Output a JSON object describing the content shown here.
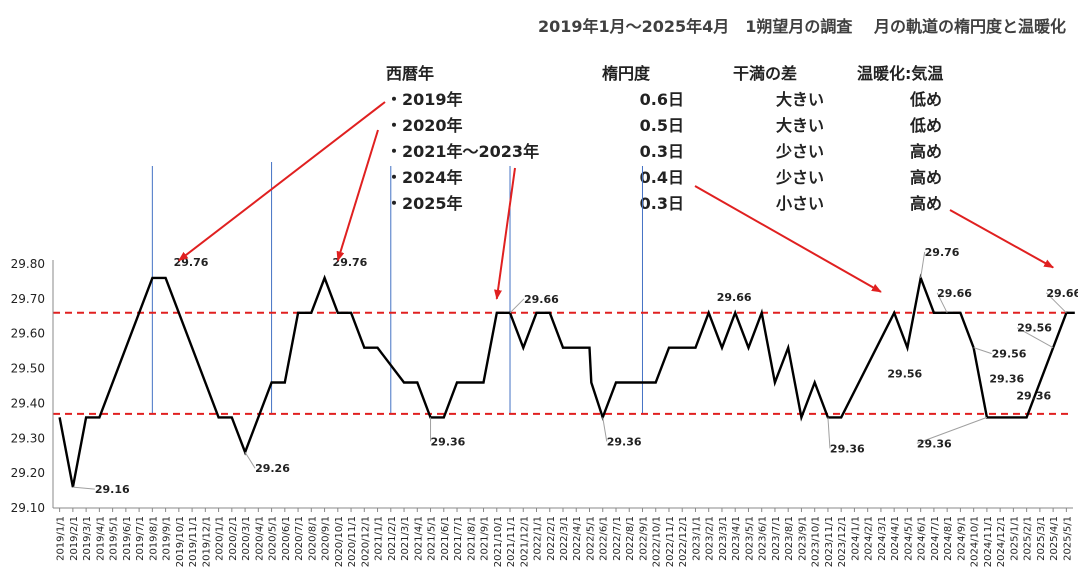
{
  "chart_data": {
    "type": "line",
    "title": "2019年1月～2025年4月　1朔望月の調査　 月の軌道の楕円度と温暖化",
    "xlabel": "",
    "ylabel": "",
    "ylim": [
      29.1,
      29.8
    ],
    "yticks": [
      29.1,
      29.2,
      29.3,
      29.4,
      29.5,
      29.6,
      29.7,
      29.8
    ],
    "grid": false,
    "legend": "none",
    "line_color": "#000000",
    "reference_lines": [
      {
        "value": 29.66,
        "style": "dashed",
        "color": "#e02020"
      },
      {
        "value": 29.37,
        "style": "dashed",
        "color": "#e02020"
      }
    ],
    "year_markers": [
      "2019/8/1",
      "2020/5/1",
      "2021/2/1",
      "2021/11/1",
      "2022/9/1"
    ],
    "marker_color": "#4472c4",
    "x": [
      "2019/1/1",
      "2019/2/1",
      "2019/3/1",
      "2019/4/1",
      "2019/5/1",
      "2019/6/1",
      "2019/7/1",
      "2019/8/1",
      "2019/9/1",
      "2019/10/1",
      "2019/11/1",
      "2019/12/1",
      "2020/1/1",
      "2020/2/1",
      "2020/3/1",
      "2020/4/1",
      "2020/5/1",
      "2020/6/1",
      "2020/7/1",
      "2020/8/1",
      "2020/9/1",
      "2020/10/1",
      "2020/11/1",
      "2020/12/1",
      "2021/1/1",
      "2021/2/1",
      "2021/3/1",
      "2021/4/1",
      "2021/5/1",
      "2021/6/1",
      "2021/7/1",
      "2021/8/1",
      "2021/9/1",
      "2021/10/1",
      "2021/11/1",
      "2021/12/1",
      "2022/1/1",
      "2022/2/1",
      "2022/3/1",
      "2022/4/1",
      "2022/5/1",
      "2022/6/1",
      "2022/7/1",
      "2022/8/1",
      "2022/9/1",
      "2022/10/1",
      "2022/11/1",
      "2022/12/1",
      "2023/1/1",
      "2023/2/1",
      "2023/3/1",
      "2023/4/1",
      "2023/5/1",
      "2023/6/1",
      "2023/7/1",
      "2023/8/1",
      "2023/9/1",
      "2023/10/1",
      "2023/11/1",
      "2023/12/1",
      "2024/1/1",
      "2024/2/1",
      "2024/3/1",
      "2024/4/1",
      "2024/5/1",
      "2024/6/1",
      "2024/7/1",
      "2024/8/1",
      "2024/9/1",
      "2024/10/1",
      "2024/11/1",
      "2024/12/1",
      "2025/1/1",
      "2025/2/1",
      "2025/3/1",
      "2025/4/1",
      "2025/5/1"
    ],
    "series": [
      {
        "points": [
          [
            "2019/1/1",
            29.36
          ],
          [
            "2019/2/1",
            29.16
          ],
          [
            "2019/3/1",
            29.36
          ],
          [
            "2019/4/1",
            29.36
          ],
          [
            "2019/8/1",
            29.76
          ],
          [
            "2019/9/1",
            29.76
          ],
          [
            "2020/1/1",
            29.36
          ],
          [
            "2020/2/1",
            29.36
          ],
          [
            "2020/3/1",
            29.26
          ],
          [
            "2020/5/1",
            29.46
          ],
          [
            "2020/6/1",
            29.46
          ],
          [
            "2020/7/1",
            29.66
          ],
          [
            "2020/8/1",
            29.66
          ],
          [
            "2020/9/1",
            29.76
          ],
          [
            "2020/10/1",
            29.66
          ],
          [
            "2020/11/1",
            29.66
          ],
          [
            "2020/12/1",
            29.56
          ],
          [
            "2021/1/1",
            29.56
          ],
          [
            "2021/3/1",
            29.46
          ],
          [
            "2021/4/1",
            29.46
          ],
          [
            "2021/5/1",
            29.36
          ],
          [
            "2021/6/1",
            29.36
          ],
          [
            "2021/7/1",
            29.46
          ],
          [
            "2021/8/1",
            29.46
          ],
          [
            "2021/9/1",
            29.46
          ],
          [
            "2021/10/1",
            29.66
          ],
          [
            "2021/11/1",
            29.66
          ],
          [
            "2021/12/1",
            29.56
          ],
          [
            "2022/1/1",
            29.66
          ],
          [
            "2022/2/1",
            29.66
          ],
          [
            "2022/3/1",
            29.56
          ],
          [
            "2022/4/1",
            29.56
          ],
          [
            "2022/5/1",
            29.56
          ],
          [
            "2022/5/5",
            29.46
          ],
          [
            "2022/6/1",
            29.36
          ],
          [
            "2022/7/1",
            29.46
          ],
          [
            "2022/8/1",
            29.46
          ],
          [
            "2022/9/1",
            29.46
          ],
          [
            "2022/10/1",
            29.46
          ],
          [
            "2022/11/1",
            29.56
          ],
          [
            "2022/12/1",
            29.56
          ],
          [
            "2023/1/1",
            29.56
          ],
          [
            "2023/2/1",
            29.66
          ],
          [
            "2023/3/1",
            29.56
          ],
          [
            "2023/4/1",
            29.66
          ],
          [
            "2023/5/1",
            29.56
          ],
          [
            "2023/6/1",
            29.66
          ],
          [
            "2023/7/1",
            29.46
          ],
          [
            "2023/8/1",
            29.56
          ],
          [
            "2023/9/1",
            29.36
          ],
          [
            "2023/10/1",
            29.46
          ],
          [
            "2023/11/1",
            29.36
          ],
          [
            "2023/12/1",
            29.36
          ],
          [
            "2024/4/1",
            29.66
          ],
          [
            "2024/5/1",
            29.56
          ],
          [
            "2024/6/1",
            29.76
          ],
          [
            "2024/7/1",
            29.66
          ],
          [
            "2024/8/1",
            29.66
          ],
          [
            "2024/9/1",
            29.66
          ],
          [
            "2024/10/1",
            29.56
          ],
          [
            "2024/11/1",
            29.36
          ],
          [
            "2025/1/1",
            29.36
          ],
          [
            "2025/2/1",
            29.36
          ],
          [
            "2025/5/1",
            29.66
          ],
          [
            "2025/5/20",
            29.66
          ]
        ]
      }
    ],
    "data_labels": [
      {
        "text": "29.76",
        "x": "2019/9/1",
        "y": 29.76
      },
      {
        "text": "29.16",
        "x": "2019/2/1",
        "y": 29.16
      },
      {
        "text": "29.76",
        "x": "2020/9/1",
        "y": 29.76
      },
      {
        "text": "29.26",
        "x": "2020/3/1",
        "y": 29.26
      },
      {
        "text": "29.36",
        "x": "2021/5/1",
        "y": 29.36
      },
      {
        "text": "29.66",
        "x": "2021/11/1",
        "y": 29.66
      },
      {
        "text": "29.36",
        "x": "2022/6/1",
        "y": 29.36
      },
      {
        "text": "29.66",
        "x": "2023/2/1",
        "y": 29.66
      },
      {
        "text": "29.36",
        "x": "2023/11/1",
        "y": 29.36
      },
      {
        "text": "29.56",
        "x": "2024/5/1",
        "y": 29.56
      },
      {
        "text": "29.76",
        "x": "2024/6/1",
        "y": 29.76
      },
      {
        "text": "29.66",
        "x": "2024/8/1",
        "y": 29.66
      },
      {
        "text": "29.56",
        "x": "2024/10/1",
        "y": 29.56
      },
      {
        "text": "29.36",
        "x": "2024/11/1",
        "y": 29.36
      },
      {
        "text": "29.36",
        "x": "2025/1/1",
        "y": 29.36
      },
      {
        "text": "29.56",
        "x": "2025/4/1",
        "y": 29.56
      },
      {
        "text": "29.66",
        "x": "2025/5/1",
        "y": 29.66
      },
      {
        "text": "29.36",
        "x": "2025/5/1",
        "y": 29.36
      }
    ],
    "info_table": {
      "headers": [
        "西暦年",
        "楕円度",
        "干満の差",
        "温暖化:気温"
      ],
      "rows": [
        [
          "・2019年",
          "0.6日",
          "大きい",
          "低め"
        ],
        [
          "・2020年",
          "0.5日",
          "大きい",
          "低め"
        ],
        [
          "・2021年～2023年",
          "0.3日",
          "少さい",
          "高め"
        ],
        [
          "・2024年",
          "0.4日",
          "少さい",
          "高め"
        ],
        [
          "・2025年",
          "0.3日",
          "小さい",
          "高め"
        ]
      ]
    },
    "arrow_color": "#e02020"
  }
}
